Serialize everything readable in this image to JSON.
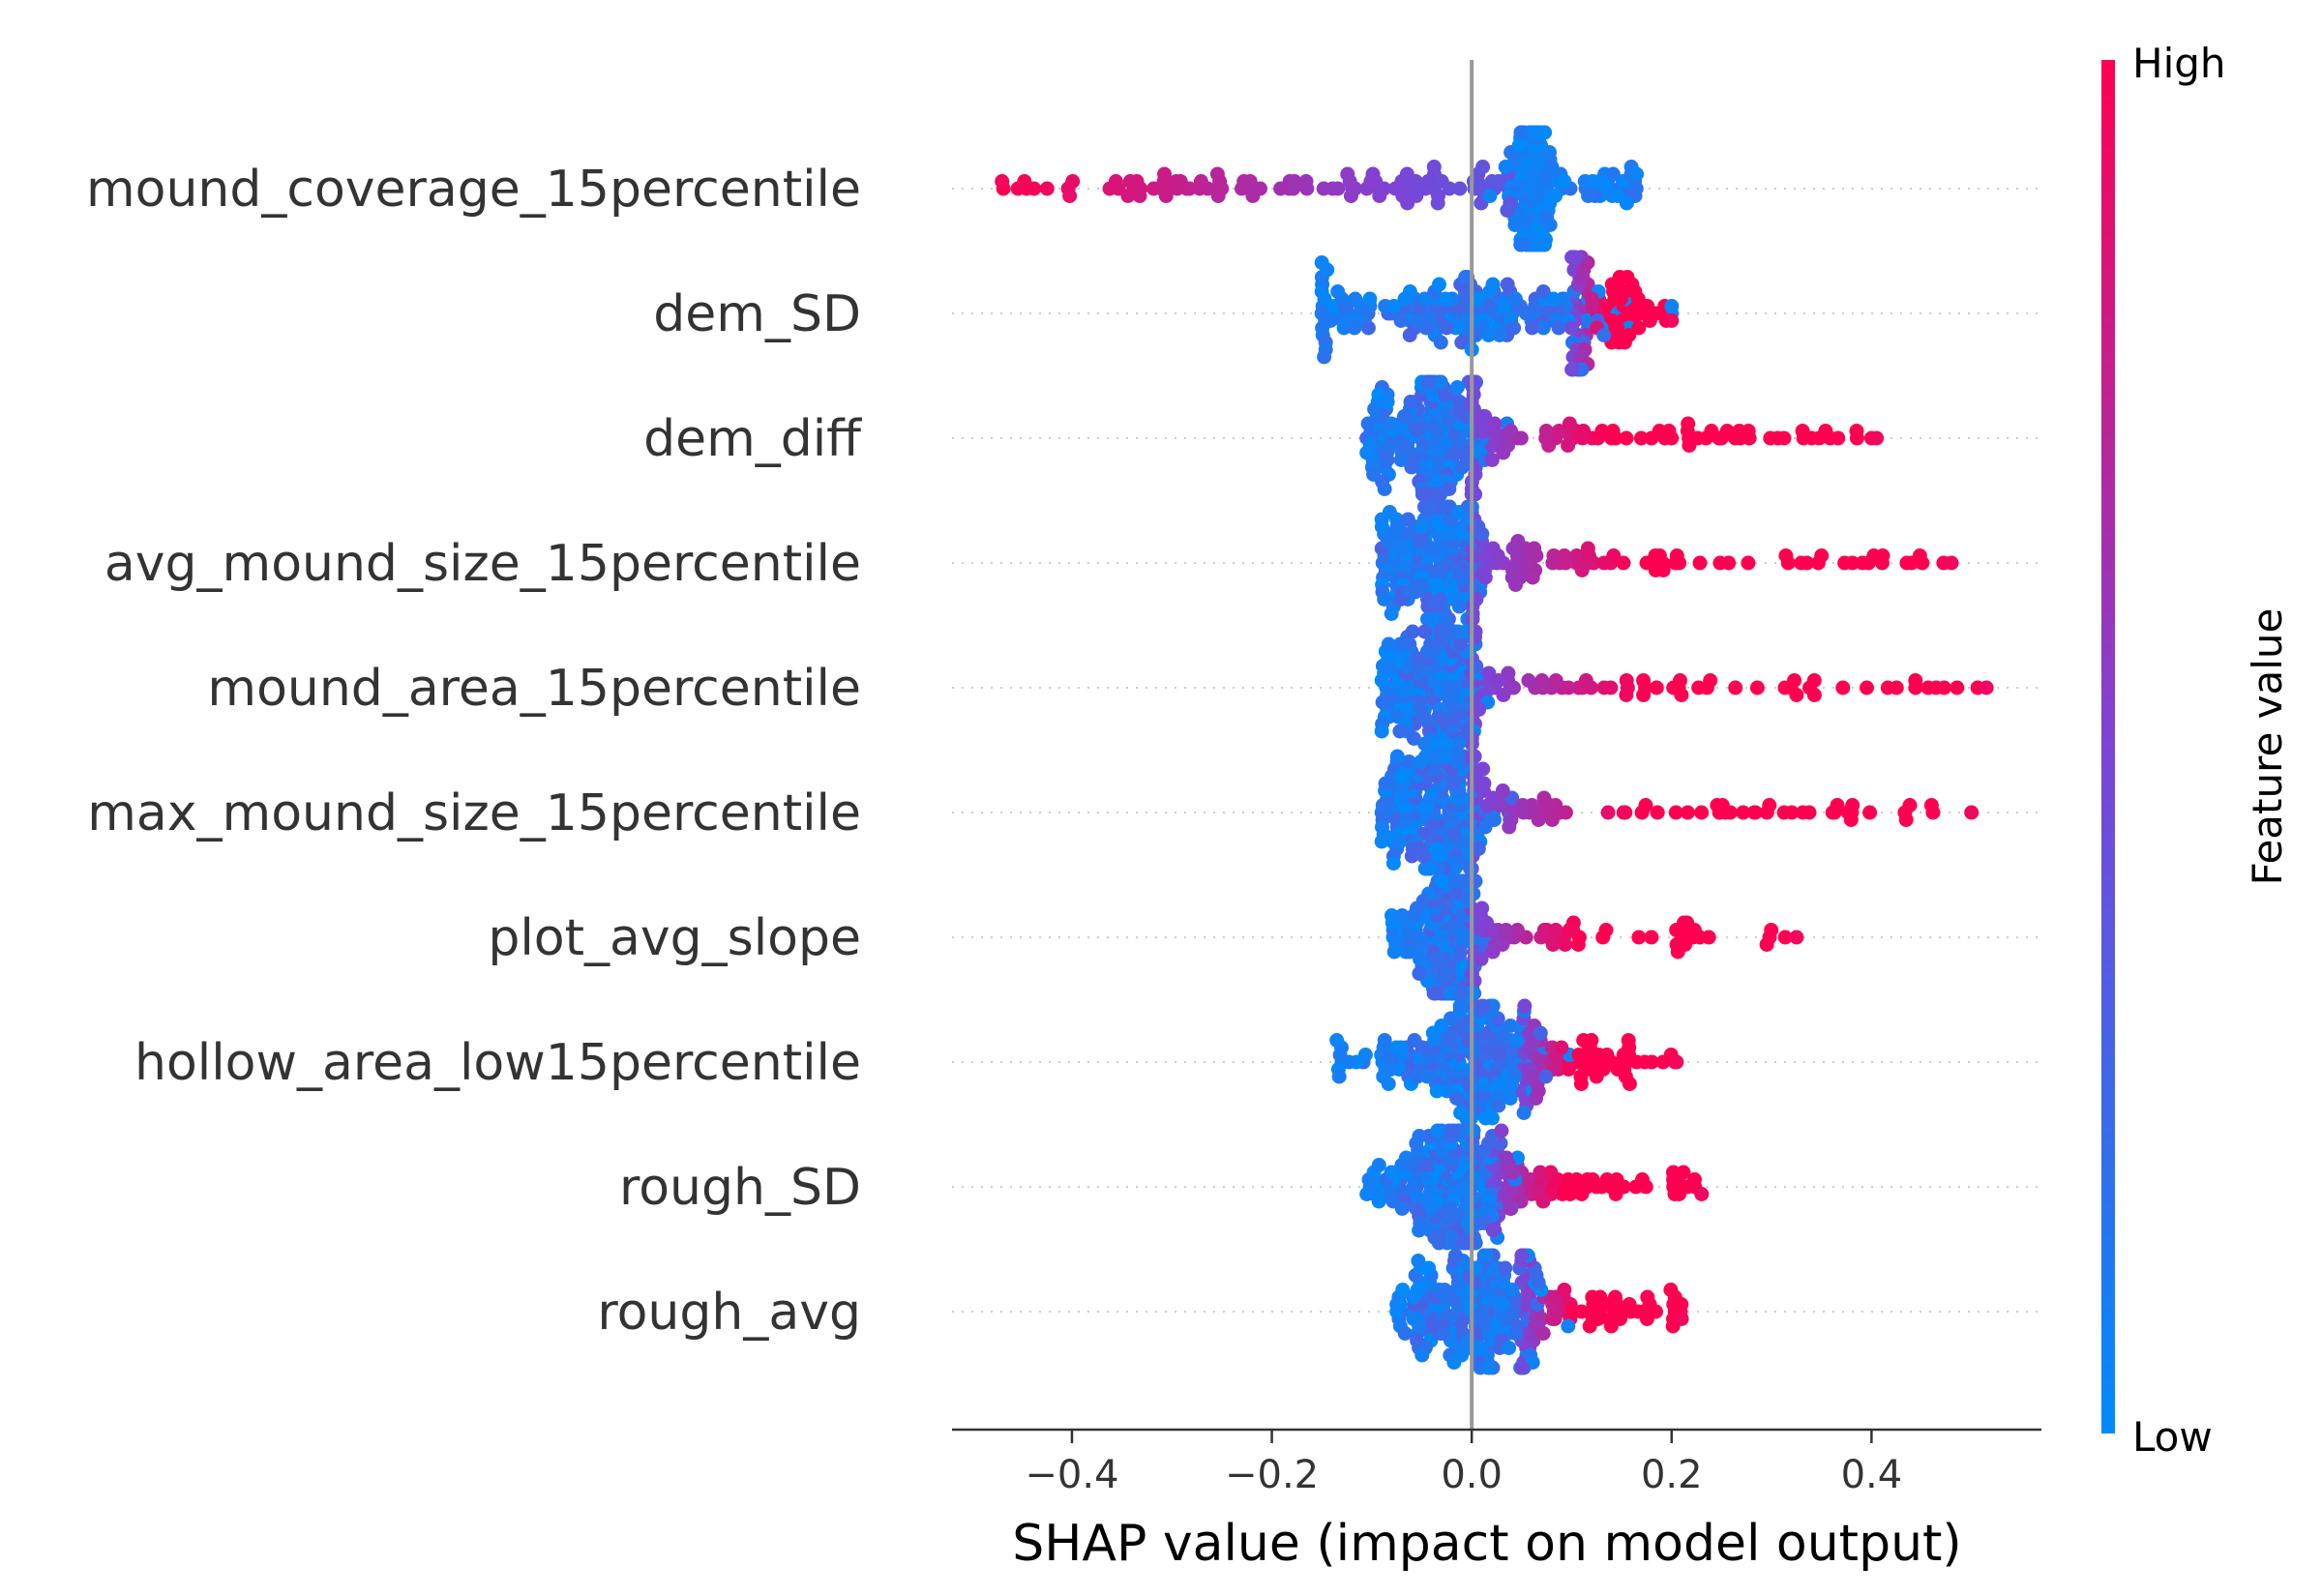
{
  "chart_data": {
    "type": "scatter",
    "subtype": "beeswarm",
    "title": "",
    "xlabel": "SHAP value (impact on model output)",
    "ylabel": "",
    "xlim": [
      -0.52,
      0.57
    ],
    "xticks": [
      -0.4,
      -0.2,
      0.0,
      0.2,
      0.4
    ],
    "xtick_labels": [
      "−0.4",
      "−0.2",
      "0.0",
      "0.2",
      "0.4"
    ],
    "zero_line": 0.0,
    "grid": false,
    "row_guides": "dotted",
    "colorbar": {
      "title": "Feature value",
      "high_label": "High",
      "low_label": "Low",
      "high_color": "#ff0051",
      "low_color": "#008bfb",
      "placement": "right"
    },
    "features": [
      {
        "name": "mound_coverage_15percentile",
        "min": -0.47,
        "max": 0.165,
        "core_lo": 0.04,
        "core_hi": 0.08,
        "trend": "high_negative"
      },
      {
        "name": "dem_SD",
        "min": -0.15,
        "max": 0.2,
        "core_lo": -0.1,
        "core_hi": 0.1,
        "trend": "high_positive"
      },
      {
        "name": "dem_diff",
        "min": -0.105,
        "max": 0.405,
        "core_lo": -0.08,
        "core_hi": 0.0,
        "trend": "high_positive"
      },
      {
        "name": "avg_mound_size_15percentile",
        "min": -0.09,
        "max": 0.48,
        "core_lo": -0.06,
        "core_hi": 0.0,
        "trend": "high_positive"
      },
      {
        "name": "mound_area_15percentile",
        "min": -0.09,
        "max": 0.515,
        "core_lo": -0.06,
        "core_hi": 0.0,
        "trend": "high_positive"
      },
      {
        "name": "max_mound_size_15percentile",
        "min": -0.09,
        "max": 0.5,
        "core_lo": -0.06,
        "core_hi": 0.0,
        "trend": "high_positive"
      },
      {
        "name": "plot_avg_slope",
        "min": -0.08,
        "max": 0.325,
        "core_lo": -0.04,
        "core_hi": 0.0,
        "trend": "high_positive"
      },
      {
        "name": "hollow_area_low15percentile",
        "min": -0.135,
        "max": 0.205,
        "core_lo": -0.05,
        "core_hi": 0.05,
        "trend": "high_positive"
      },
      {
        "name": "rough_SD",
        "min": -0.105,
        "max": 0.23,
        "core_lo": -0.05,
        "core_hi": 0.02,
        "trend": "high_positive"
      },
      {
        "name": "rough_avg",
        "min": -0.075,
        "max": 0.21,
        "core_lo": -0.04,
        "core_hi": 0.05,
        "trend": "high_positive"
      }
    ]
  }
}
